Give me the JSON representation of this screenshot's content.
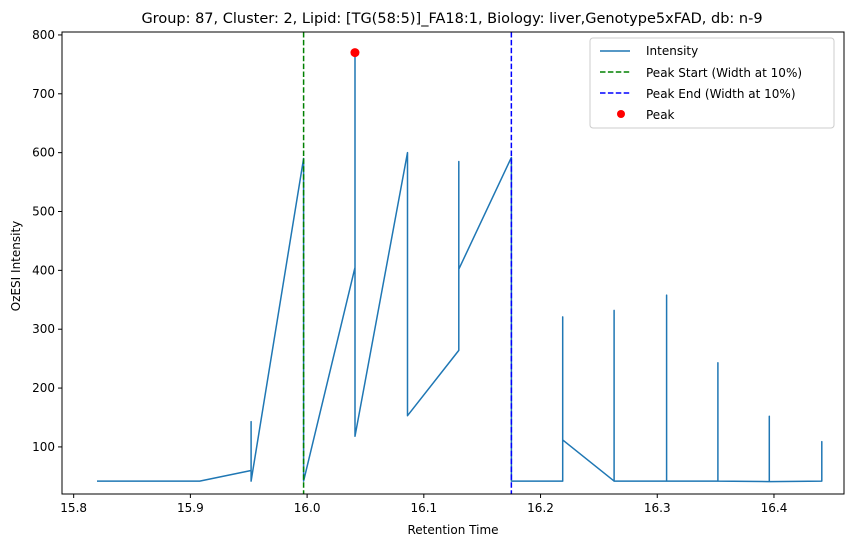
{
  "chart_data": {
    "type": "line",
    "title": "Group: 87, Cluster: 2, Lipid: [TG(58:5)]_FA18:1, Biology: liver,Genotype5xFAD, db: n-9",
    "xlabel": "Retention Time",
    "ylabel": "OzESI Intensity",
    "xlim": [
      15.79,
      16.46
    ],
    "ylim": [
      20,
      805
    ],
    "x_ticks": [
      15.8,
      15.9,
      16.0,
      16.1,
      16.2,
      16.3,
      16.4
    ],
    "x_tick_labels": [
      "15.8",
      "15.9",
      "16.0",
      "16.1",
      "16.2",
      "16.3",
      "16.4"
    ],
    "y_ticks": [
      100,
      200,
      300,
      400,
      500,
      600,
      700,
      800
    ],
    "y_tick_labels": [
      "100",
      "200",
      "300",
      "400",
      "500",
      "600",
      "700",
      "800"
    ],
    "grid": false,
    "legend_position": "upper right",
    "series": [
      {
        "name": "Intensity",
        "color": "#1f77b4",
        "style": "solid",
        "x": [
          15.82,
          15.865,
          15.908,
          15.952,
          15.952,
          15.952,
          15.997,
          15.997,
          16.041,
          16.041,
          16.041,
          16.041,
          16.086,
          16.086,
          16.13,
          16.13,
          16.13,
          16.175,
          16.175,
          16.219,
          16.219,
          16.219,
          16.263,
          16.263,
          16.263,
          16.308,
          16.308,
          16.308,
          16.352,
          16.352,
          16.352,
          16.396,
          16.396,
          16.396,
          16.441,
          16.441,
          16.441
        ],
        "y": [
          42,
          42,
          42,
          60,
          143,
          42,
          590,
          42,
          405,
          769,
          770,
          118,
          600,
          153,
          264,
          585,
          402,
          592,
          42,
          42,
          321,
          112,
          42,
          332,
          42,
          42,
          358,
          42,
          42,
          243,
          42,
          41,
          152,
          41,
          42,
          109,
          42
        ]
      },
      {
        "name": "Peak Start (Width at 10%)",
        "color": "#008000",
        "style": "dashed",
        "vline_x": 15.997
      },
      {
        "name": "Peak End (Width at 10%)",
        "color": "#0000ff",
        "style": "dashed",
        "vline_x": 16.175
      },
      {
        "name": "Peak",
        "color": "#ff0000",
        "style": "marker",
        "x": [
          16.041
        ],
        "y": [
          770
        ]
      }
    ]
  }
}
